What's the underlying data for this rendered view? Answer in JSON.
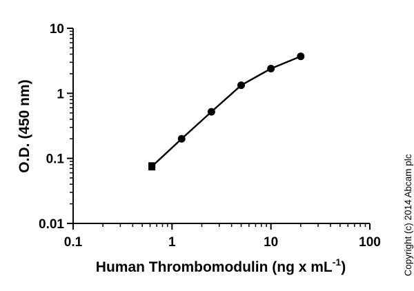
{
  "chart_data": {
    "type": "scatter",
    "xlabel": "Human Thrombomodulin (ng x mL",
    "xlabel_superscript": "-1",
    "xlabel_suffix": ")",
    "ylabel": "O.D. (450 nm)",
    "x_scale": "log",
    "y_scale": "log",
    "xlim": [
      0.1,
      100
    ],
    "ylim": [
      0.01,
      10
    ],
    "x_ticks": [
      {
        "value": 0.1,
        "label": "0.1"
      },
      {
        "value": 1,
        "label": "1"
      },
      {
        "value": 10,
        "label": "10"
      },
      {
        "value": 100,
        "label": "100"
      }
    ],
    "y_ticks": [
      {
        "value": 0.01,
        "label": "0.01"
      },
      {
        "value": 0.1,
        "label": "0.1"
      },
      {
        "value": 1,
        "label": "1"
      },
      {
        "value": 10,
        "label": "10"
      }
    ],
    "grid": false,
    "legend": "none",
    "series": [
      {
        "x": [
          0.625,
          1.25,
          2.5,
          5,
          10,
          20
        ],
        "y": [
          0.075,
          0.2,
          0.52,
          1.33,
          2.4,
          3.7
        ],
        "y_replicates": [
          [
            0.072,
            0.079
          ],
          [
            0.2
          ],
          [
            0.52
          ],
          [
            1.33
          ],
          [
            2.4
          ],
          [
            3.7
          ]
        ],
        "color": "#000000"
      }
    ],
    "annotations": [
      "Copyright (c) 2014 Abcam plc"
    ]
  }
}
